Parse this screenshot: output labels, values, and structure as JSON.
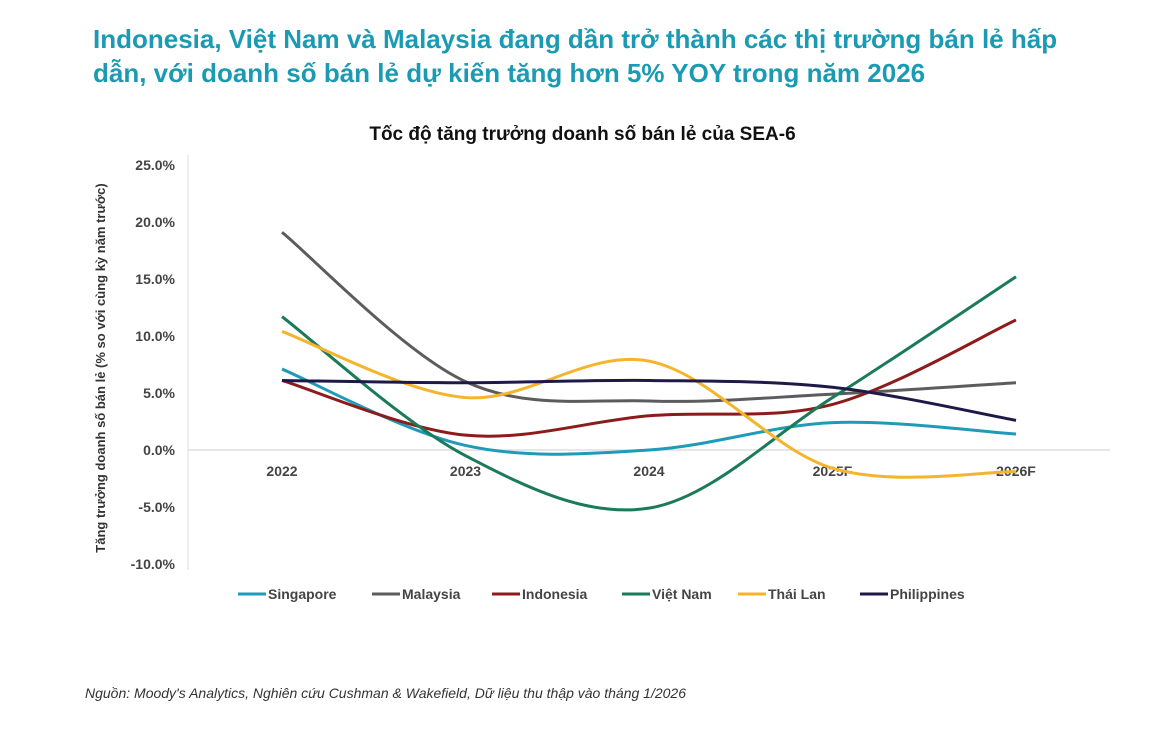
{
  "headline": "Indonesia, Việt Nam và Malaysia đang dần trở thành các thị trường bán lẻ hấp dẫn, với doanh số bán lẻ dự kiến tăng hơn 5% YOY trong năm 2026",
  "source": "Nguồn: Moody's Analytics, Nghiên cứu Cushman & Wakefield, Dữ liệu thu thập vào tháng 1/2026",
  "chart_data": {
    "type": "line",
    "title": "Tốc độ tăng trưởng doanh số bán lẻ của SEA-6",
    "ylabel": "Tăng trưởng doanh số bán lẻ (% so với cùng kỳ năm trước)",
    "xlabel": "",
    "categories": [
      "2022",
      "2023",
      "2024",
      "2025F",
      "2026F"
    ],
    "ylim": [
      -10,
      25
    ],
    "yticks": [
      "25.0%",
      "20.0%",
      "15.0%",
      "10.0%",
      "5.0%",
      "0.0%",
      "-5.0%",
      "-10.0%"
    ],
    "ytick_values": [
      25,
      20,
      15,
      10,
      5,
      0,
      -5,
      -10
    ],
    "smooth": true,
    "grid": false,
    "legend": "bottom",
    "series": [
      {
        "name": "Singapore",
        "color": "#1f9bb8",
        "values": [
          7.1,
          0.4,
          0.0,
          2.4,
          1.4
        ]
      },
      {
        "name": "Malaysia",
        "color": "#5c5c5c",
        "values": [
          19.1,
          6.0,
          4.3,
          4.9,
          5.9
        ]
      },
      {
        "name": "Indonesia",
        "color": "#8e1b1b",
        "values": [
          6.1,
          1.3,
          3.0,
          4.0,
          11.4
        ]
      },
      {
        "name": "Việt Nam",
        "color": "#1b7a58",
        "values": [
          11.7,
          -0.5,
          -5.1,
          4.6,
          15.2
        ]
      },
      {
        "name": "Thái Lan",
        "color": "#f4b52c",
        "values": [
          10.4,
          4.6,
          7.8,
          -1.6,
          -1.9
        ]
      },
      {
        "name": "Philippines",
        "color": "#1e1a47",
        "values": [
          6.1,
          5.9,
          6.1,
          5.5,
          2.6
        ]
      }
    ]
  }
}
